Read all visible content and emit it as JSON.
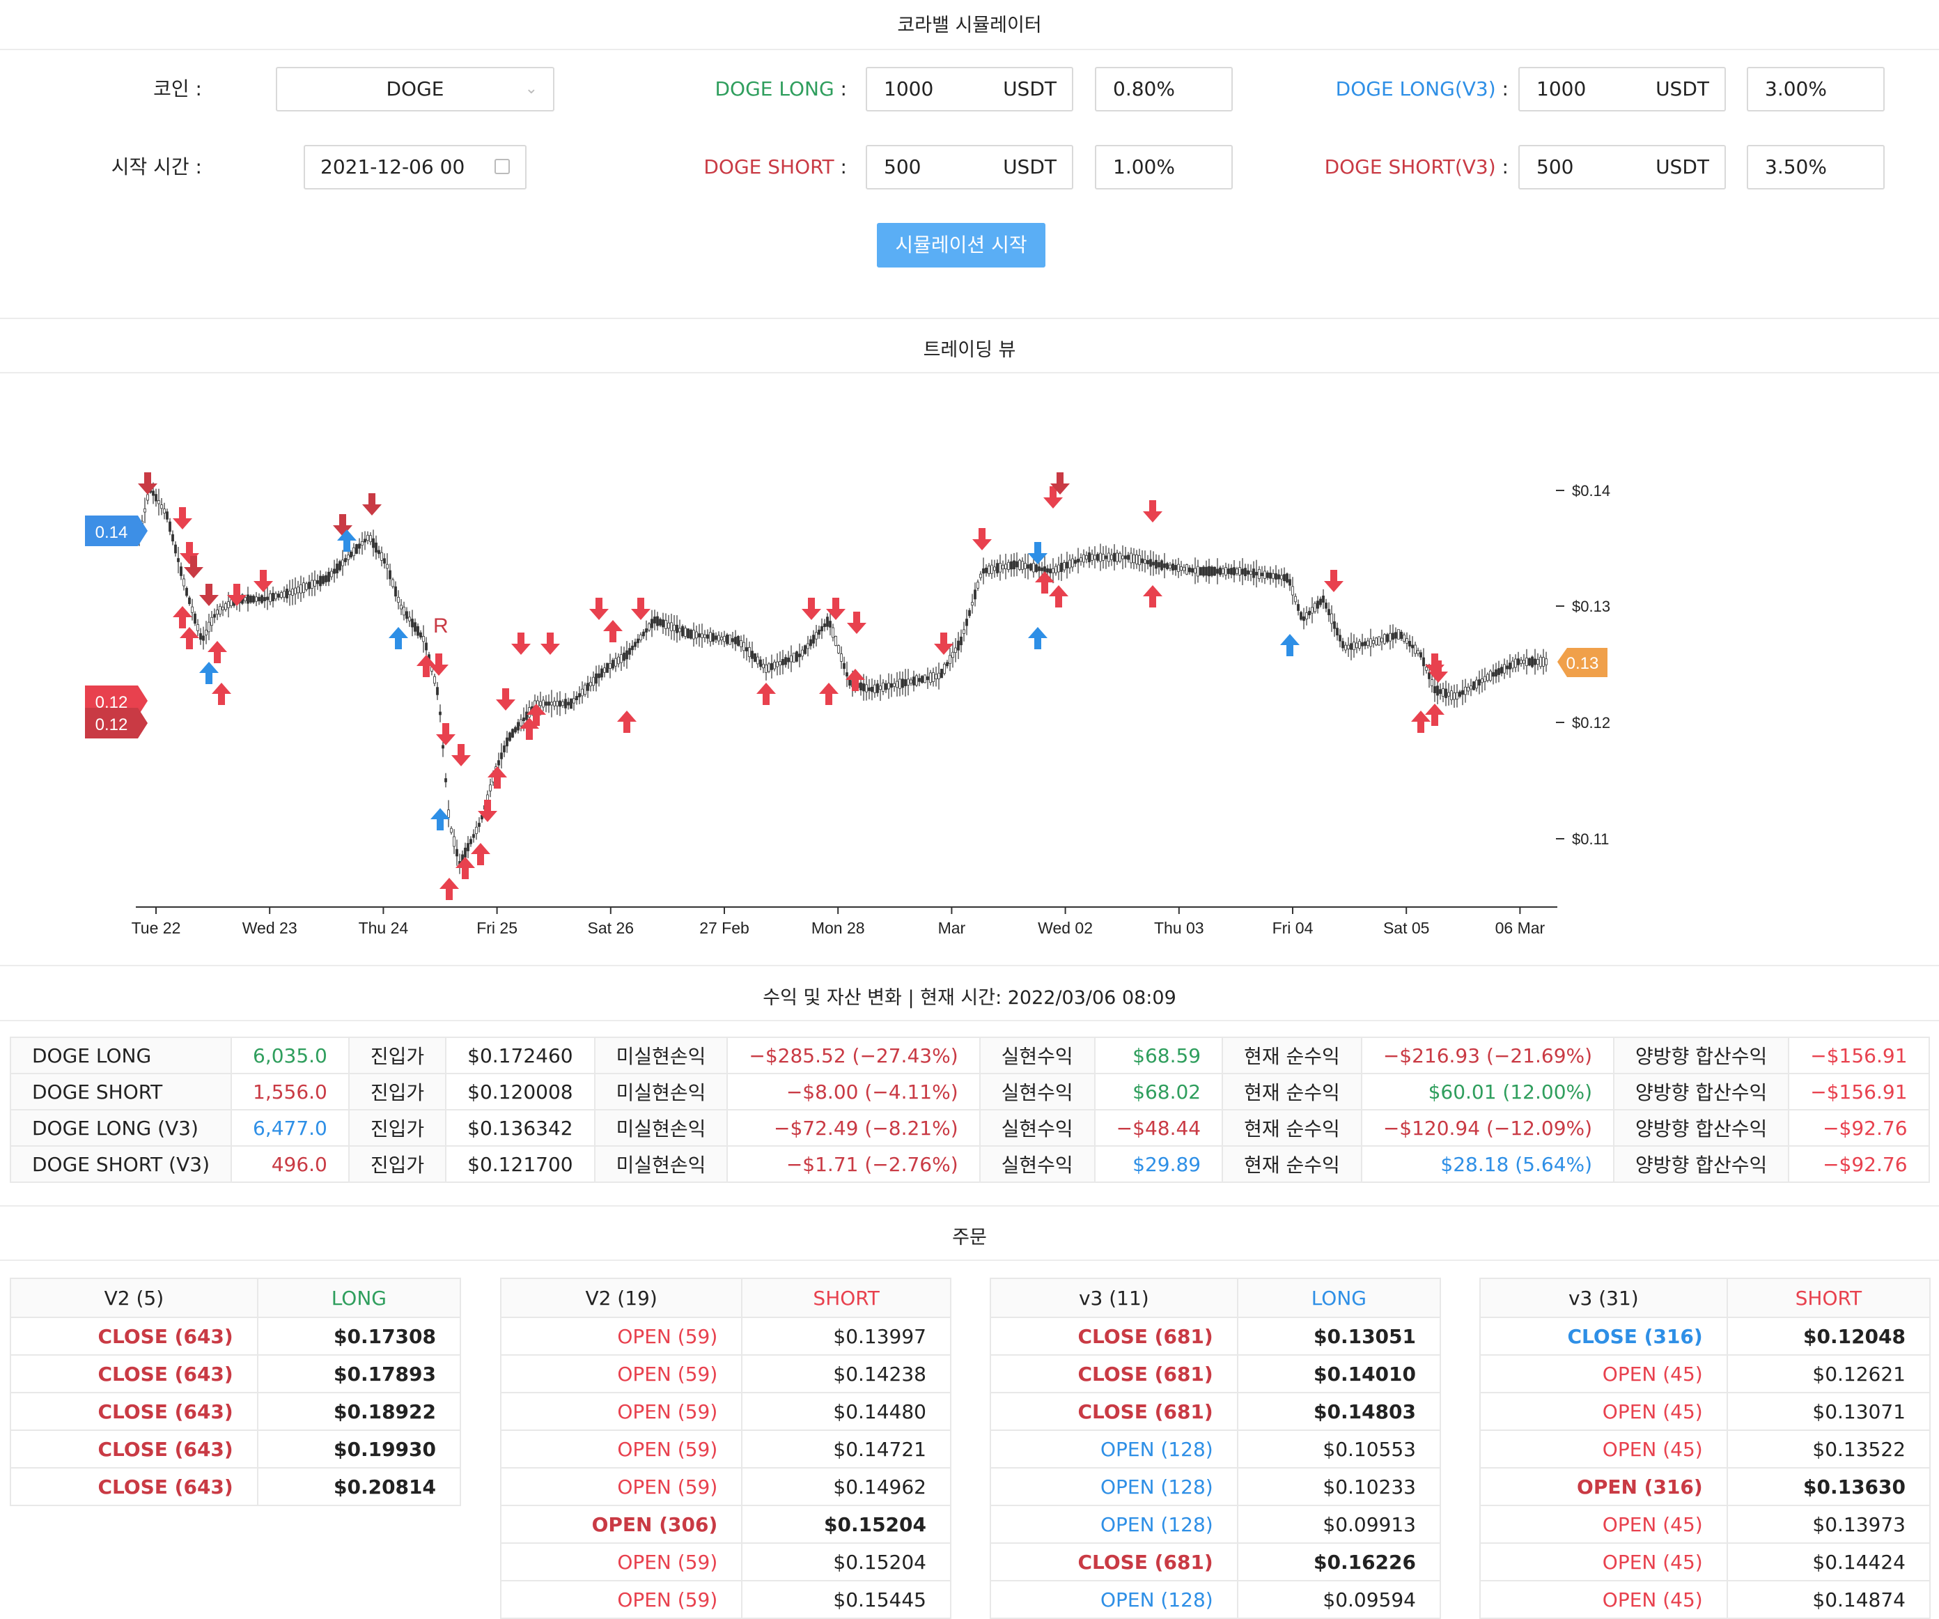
{
  "app_title": "코라밸 시뮬레이터",
  "form": {
    "coin_label": "코인 :",
    "coin_value": "DOGE",
    "start_label": "시작 시간 :",
    "start_value": "2021-12-06 00",
    "long_label": "DOGE LONG",
    "long_amount": "1000",
    "long_unit": "USDT",
    "long_pct": "0.80%",
    "short_label": "DOGE SHORT",
    "short_amount": "500",
    "short_unit": "USDT",
    "short_pct": "1.00%",
    "long_v3_label": "DOGE LONG(V3)",
    "long_v3_amount": "1000",
    "long_v3_unit": "USDT",
    "long_v3_pct": "3.00%",
    "short_v3_label": "DOGE SHORT(V3)",
    "short_v3_amount": "500",
    "short_v3_unit": "USDT",
    "short_v3_pct": "3.50%",
    "colon": ":",
    "start_button": "시뮬레이션 시작"
  },
  "trading_view": {
    "title": "트레이딩 뷰",
    "price_axis": [
      "$0.14",
      "$0.13",
      "$0.12",
      "$0.11"
    ],
    "time_axis": [
      "Tue 22",
      "Wed 23",
      "Thu 24",
      "Fri 25",
      "Sat 26",
      "27 Feb",
      "Mon 28",
      "Mar",
      "Wed 02",
      "Thu 03",
      "Fri 04",
      "Sat 05",
      "06 Mar"
    ],
    "left_badge_blue": "0.14",
    "left_badge_red1": "0.12",
    "left_badge_red2": "0.12",
    "right_badge": "0.13",
    "marker_r": "R",
    "colors": {
      "up": "#e8414e",
      "down": "#c93a44",
      "blue": "#2e8fe6",
      "orange": "#f0a04a"
    }
  },
  "profit": {
    "title": "수익 및 자산 변화 | 현재 시간: 2022/03/06 08:09",
    "rows": [
      {
        "name": "DOGE LONG",
        "qty": "6,035.0",
        "qty_color": "green",
        "entry_label": "진입가",
        "entry": "$0.172460",
        "unreal_label": "미실현손익",
        "unreal": "−$285.52 (−27.43%)",
        "unreal_color": "red",
        "real_label": "실현수익",
        "real": "$68.59",
        "real_color": "green",
        "net_label": "현재 순수익",
        "net": "−$216.93 (−21.69%)",
        "net_color": "red",
        "total_label": "양방향 합산수익",
        "total": "−$156.91"
      },
      {
        "name": "DOGE SHORT",
        "qty": "1,556.0",
        "qty_color": "red",
        "entry_label": "진입가",
        "entry": "$0.120008",
        "unreal_label": "미실현손익",
        "unreal": "−$8.00 (−4.11%)",
        "unreal_color": "red",
        "real_label": "실현수익",
        "real": "$68.02",
        "real_color": "green",
        "net_label": "현재 순수익",
        "net": "$60.01 (12.00%)",
        "net_color": "green",
        "total_label": "양방향 합산수익",
        "total": "−$156.91"
      },
      {
        "name": "DOGE LONG (V3)",
        "qty": "6,477.0",
        "qty_color": "blue",
        "entry_label": "진입가",
        "entry": "$0.136342",
        "unreal_label": "미실현손익",
        "unreal": "−$72.49 (−8.21%)",
        "unreal_color": "red",
        "real_label": "실현수익",
        "real": "−$48.44",
        "real_color": "red",
        "net_label": "현재 순수익",
        "net": "−$120.94 (−12.09%)",
        "net_color": "red",
        "total_label": "양방향 합산수익",
        "total": "−$92.76"
      },
      {
        "name": "DOGE SHORT (V3)",
        "qty": "496.0",
        "qty_color": "red",
        "entry_label": "진입가",
        "entry": "$0.121700",
        "unreal_label": "미실현손익",
        "unreal": "−$1.71 (−2.76%)",
        "unreal_color": "red",
        "real_label": "실현수익",
        "real": "$29.89",
        "real_color": "blue",
        "net_label": "현재 순수익",
        "net": "$28.18 (5.64%)",
        "net_color": "blue",
        "total_label": "양방향 합산수익",
        "total": "−$92.76"
      }
    ]
  },
  "orders": {
    "title": "주문",
    "tables": [
      {
        "head": "V2 (5)",
        "side": "LONG",
        "side_color": "green",
        "rows": [
          {
            "action": "CLOSE (643)",
            "color": "red",
            "bold": true,
            "price": "$0.17308"
          },
          {
            "action": "CLOSE (643)",
            "color": "red",
            "bold": true,
            "price": "$0.17893"
          },
          {
            "action": "CLOSE (643)",
            "color": "red",
            "bold": true,
            "price": "$0.18922"
          },
          {
            "action": "CLOSE (643)",
            "color": "red",
            "bold": true,
            "price": "$0.19930"
          },
          {
            "action": "CLOSE (643)",
            "color": "red",
            "bold": true,
            "price": "$0.20814"
          }
        ]
      },
      {
        "head": "V2 (19)",
        "side": "SHORT",
        "side_color": "red2",
        "rows": [
          {
            "action": "OPEN (59)",
            "color": "red2",
            "bold": false,
            "price": "$0.13997"
          },
          {
            "action": "OPEN (59)",
            "color": "red2",
            "bold": false,
            "price": "$0.14238"
          },
          {
            "action": "OPEN (59)",
            "color": "red2",
            "bold": false,
            "price": "$0.14480"
          },
          {
            "action": "OPEN (59)",
            "color": "red2",
            "bold": false,
            "price": "$0.14721"
          },
          {
            "action": "OPEN (59)",
            "color": "red2",
            "bold": false,
            "price": "$0.14962"
          },
          {
            "action": "OPEN (306)",
            "color": "red",
            "bold": true,
            "price": "$0.15204"
          },
          {
            "action": "OPEN (59)",
            "color": "red2",
            "bold": false,
            "price": "$0.15204"
          },
          {
            "action": "OPEN (59)",
            "color": "red2",
            "bold": false,
            "price": "$0.15445"
          }
        ]
      },
      {
        "head": "v3 (11)",
        "side": "LONG",
        "side_color": "blue",
        "rows": [
          {
            "action": "CLOSE (681)",
            "color": "red",
            "bold": true,
            "price": "$0.13051"
          },
          {
            "action": "CLOSE (681)",
            "color": "red",
            "bold": true,
            "price": "$0.14010"
          },
          {
            "action": "CLOSE (681)",
            "color": "red",
            "bold": true,
            "price": "$0.14803"
          },
          {
            "action": "OPEN (128)",
            "color": "blue",
            "bold": false,
            "price": "$0.10553"
          },
          {
            "action": "OPEN (128)",
            "color": "blue",
            "bold": false,
            "price": "$0.10233"
          },
          {
            "action": "OPEN (128)",
            "color": "blue",
            "bold": false,
            "price": "$0.09913"
          },
          {
            "action": "CLOSE (681)",
            "color": "red",
            "bold": true,
            "price": "$0.16226"
          },
          {
            "action": "OPEN (128)",
            "color": "blue",
            "bold": false,
            "price": "$0.09594"
          }
        ]
      },
      {
        "head": "v3 (31)",
        "side": "SHORT",
        "side_color": "red2",
        "rows": [
          {
            "action": "CLOSE (316)",
            "color": "blue",
            "bold": true,
            "price": "$0.12048"
          },
          {
            "action": "OPEN (45)",
            "color": "red2",
            "bold": false,
            "price": "$0.12621"
          },
          {
            "action": "OPEN (45)",
            "color": "red2",
            "bold": false,
            "price": "$0.13071"
          },
          {
            "action": "OPEN (45)",
            "color": "red2",
            "bold": false,
            "price": "$0.13522"
          },
          {
            "action": "OPEN (316)",
            "color": "red",
            "bold": true,
            "price": "$0.13630"
          },
          {
            "action": "OPEN (45)",
            "color": "red2",
            "bold": false,
            "price": "$0.13973"
          },
          {
            "action": "OPEN (45)",
            "color": "red2",
            "bold": false,
            "price": "$0.14424"
          },
          {
            "action": "OPEN (45)",
            "color": "red2",
            "bold": false,
            "price": "$0.14874"
          }
        ]
      }
    ]
  }
}
